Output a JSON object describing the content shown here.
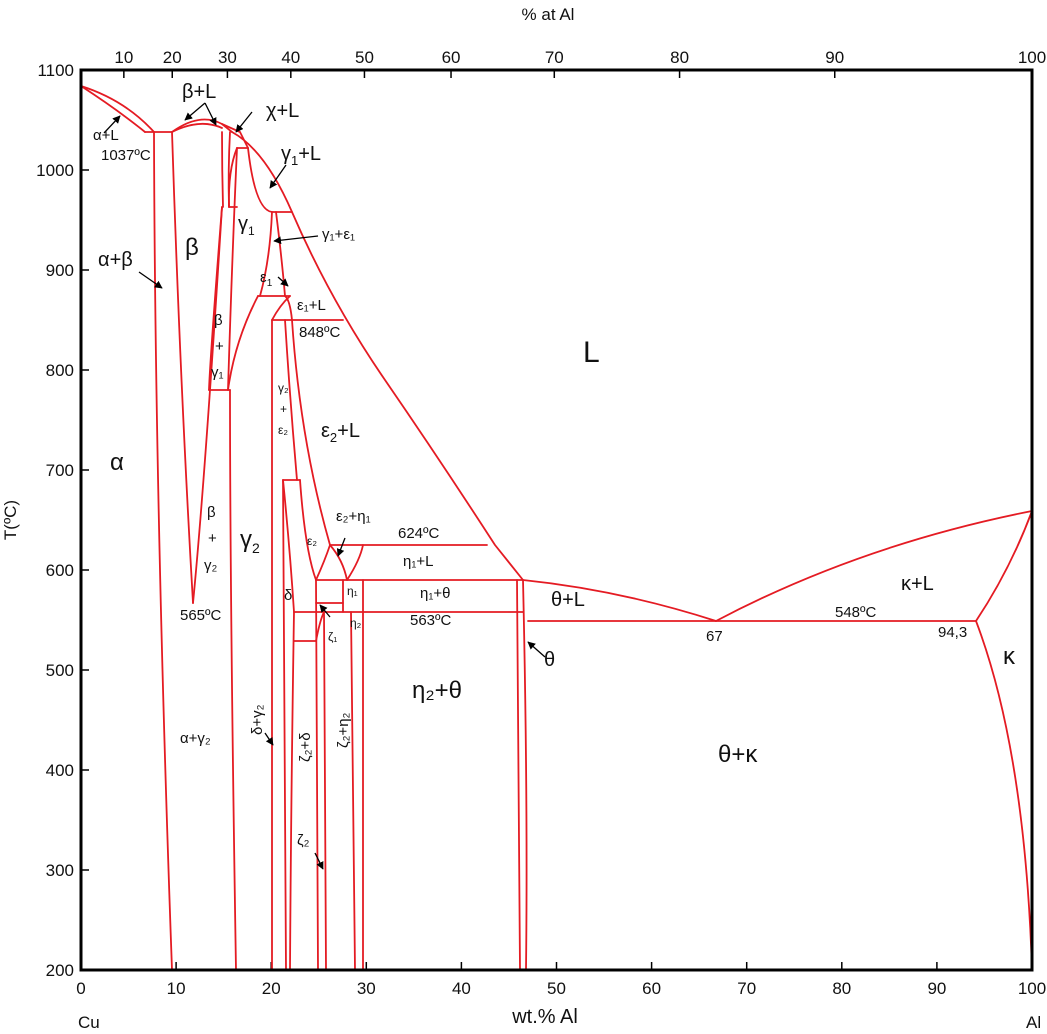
{
  "colors": {
    "line": "#e41b23",
    "frame": "#000000",
    "text": "#111111"
  },
  "axes": {
    "bottom_label": "wt.% Al",
    "top_label": "% at Al",
    "left_label": "T(ºC)",
    "corner_left": "Cu",
    "corner_right": "Al",
    "x_ticks": [
      "0",
      "10",
      "20",
      "30",
      "40",
      "50",
      "60",
      "70",
      "80",
      "90",
      "100"
    ],
    "top_ticks": [
      "10",
      "20",
      "30",
      "40",
      "50",
      "60",
      "70",
      "80",
      "90",
      "100"
    ],
    "y_ticks": [
      "1100",
      "1000",
      "900",
      "800",
      "700",
      "600",
      "500",
      "400",
      "300",
      "200"
    ]
  },
  "regions": {
    "alpha": "α",
    "alpha_beta": "α+β",
    "alpha_L": "α+L",
    "beta": "β",
    "beta_L": "β+L",
    "chi_L": "χ+L",
    "gamma1_L_base": "γ",
    "gamma1_L_sub": "1",
    "gamma1_L_tail": "+L",
    "gamma1_base": "γ",
    "gamma1_sub": "1",
    "gamma1_eps1": "γ₁+ε₁",
    "eps1_base": "ε",
    "eps1_sub": "1",
    "eps1_L": "ε₁+L",
    "L": "L",
    "beta_gamma1_b": "β",
    "beta_gamma1_p": "+",
    "beta_gamma1_g": "γ₁",
    "gamma2_eps2_g": "γ₂",
    "gamma2_eps2_p": "+",
    "gamma2_eps2_e": "ε₂",
    "eps2_L_base": "ε",
    "eps2_L_sub": "2",
    "eps2_L_tail": "+L",
    "beta_gamma2_b": "β",
    "beta_gamma2_p": "+",
    "beta_gamma2_g": "γ₂",
    "gamma2_base": "γ",
    "gamma2_sub": "2",
    "eps2_eta1": "ε₂+η₁",
    "eps2": "ε₂",
    "eta1_L": "η₁+L",
    "eta1": "η₁",
    "eta1_theta": "η₁+θ",
    "theta_L": "θ+L",
    "kappa_L": "κ+L",
    "delta": "δ",
    "zeta1": "ζ₁",
    "eta2": "η₂",
    "theta": "θ",
    "kappa": "κ",
    "eta2_theta": "η₂+θ",
    "alpha_gamma2": "α+γ₂",
    "delta_gamma2": "δ+γ₂",
    "zeta2_delta": "ζ₂+δ",
    "zeta2_eta2": "ζ₂+η₂",
    "zeta2": "ζ₂",
    "theta_kappa": "θ+κ"
  },
  "points": {
    "t1037": "1037ºC",
    "t848": "848ºC",
    "t624": "624ºC",
    "t565": "565ºC",
    "t563": "563ºC",
    "t548": "548ºC",
    "c67": "67",
    "c943": "94,3"
  }
}
